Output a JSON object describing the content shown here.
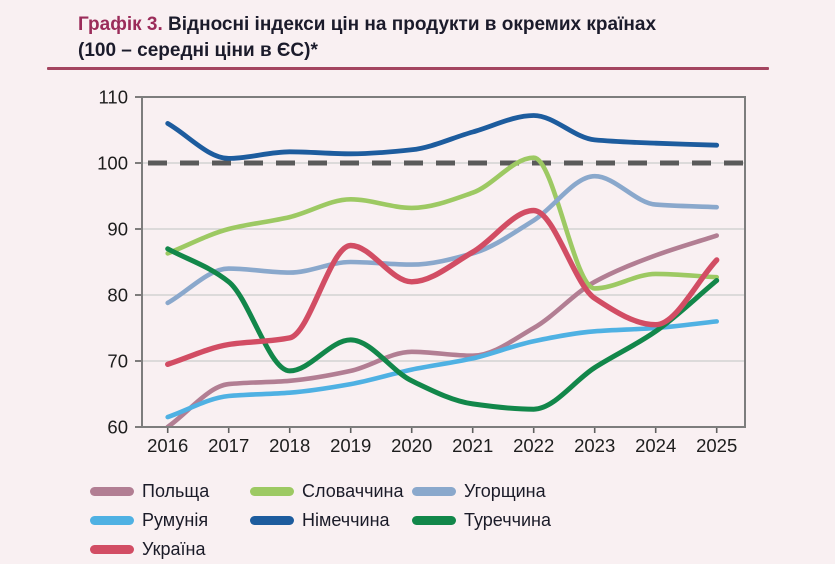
{
  "title": {
    "prefix": "Графік 3.",
    "line1_rest": " Відносні індекси цін на продукти в окремих країнах",
    "line2": "(100 – середні ціни в ЄС)*"
  },
  "chart_data": {
    "type": "line",
    "x": [
      2016,
      2017,
      2018,
      2019,
      2020,
      2021,
      2022,
      2023,
      2024,
      2025
    ],
    "ylim": [
      60,
      110
    ],
    "yticks": [
      60,
      70,
      80,
      90,
      100,
      110
    ],
    "grid": "horizontal",
    "reference_line": {
      "value": 100,
      "meaning": "середні ціни в ЄС",
      "style": "dashed",
      "color": "#5a5a5a"
    },
    "legend_position": "bottom",
    "series": [
      {
        "name": "Польща",
        "color": "#b27e93",
        "width": 4.6,
        "values": [
          60.0,
          66.5,
          67.0,
          68.5,
          71.4,
          70.8,
          75.0,
          82.0,
          86.0,
          89.0
        ]
      },
      {
        "name": "Словаччина",
        "color": "#9dc963",
        "width": 4.6,
        "values": [
          86.3,
          90.0,
          91.8,
          94.5,
          93.2,
          95.5,
          100.8,
          81.0,
          83.2,
          82.7
        ]
      },
      {
        "name": "Угорщина",
        "color": "#8aa8cc",
        "width": 4.6,
        "values": [
          78.8,
          84.0,
          83.4,
          85.0,
          84.6,
          86.3,
          91.3,
          98.0,
          93.7,
          93.3
        ]
      },
      {
        "name": "Румунія",
        "color": "#4fb1e3",
        "width": 4.6,
        "values": [
          61.5,
          64.7,
          65.2,
          66.5,
          68.7,
          70.4,
          73.0,
          74.5,
          75.0,
          76.0
        ]
      },
      {
        "name": "Німеччина",
        "color": "#1d5c9e",
        "width": 4.8,
        "values": [
          106.0,
          100.7,
          101.7,
          101.4,
          102.0,
          104.7,
          107.2,
          103.5,
          103.0,
          102.7
        ]
      },
      {
        "name": "Туреччина",
        "color": "#12874a",
        "width": 5.0,
        "values": [
          87.0,
          82.0,
          68.5,
          73.2,
          67.0,
          63.5,
          62.7,
          69.0,
          74.5,
          82.2
        ]
      },
      {
        "name": "Україна",
        "color": "#d24d64",
        "width": 5.4,
        "values": [
          69.5,
          72.5,
          73.5,
          87.5,
          82.0,
          86.5,
          92.8,
          79.5,
          75.5,
          85.3
        ]
      }
    ],
    "axis_colors": {
      "grid": "#cccccc",
      "border": "#7d7d7d",
      "tick": "#5f5f5f",
      "label": "#1d1d1d"
    }
  }
}
